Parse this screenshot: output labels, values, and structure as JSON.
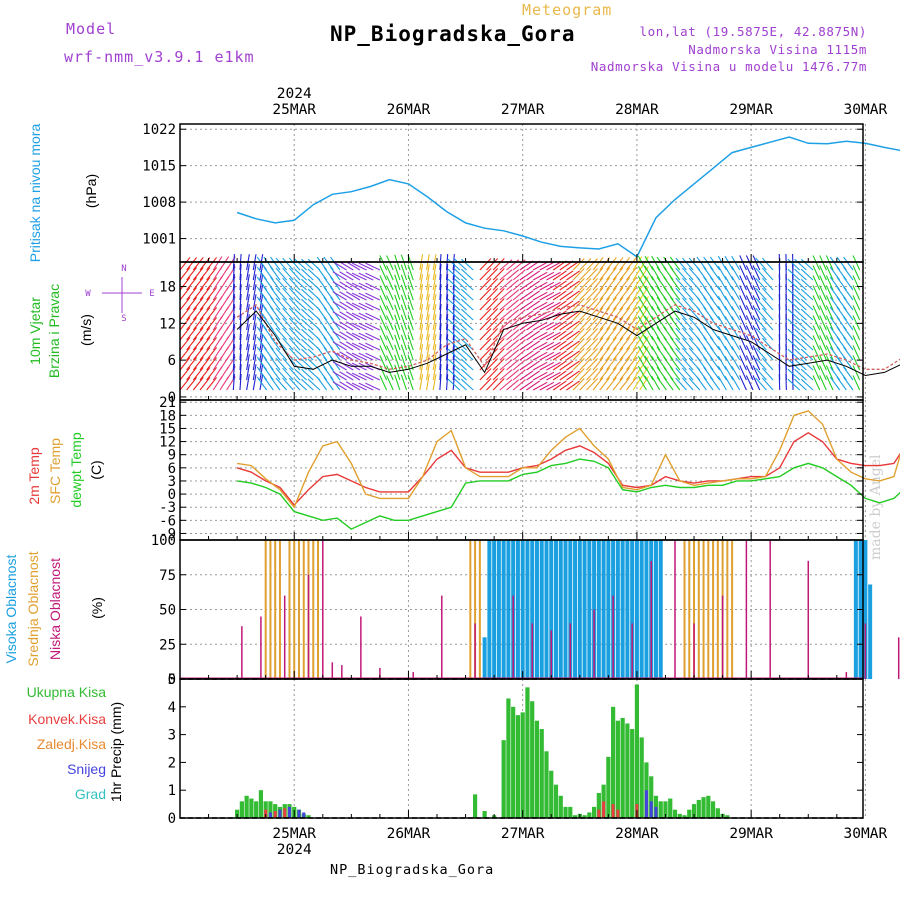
{
  "header": {
    "model_label": "Model",
    "model_name": "wrf-nmm_v3.9.1 e1km",
    "meteogram_label": "Meteogram",
    "station_title": "NP_Biogradska_Gora",
    "lonlat": "lon,lat (19.5875E, 42.8875N)",
    "altitude": "Nadmorska Visina 1115m",
    "model_altitude": "Nadmorska Visina u modelu 1476.77m",
    "made_by": "made by Angel",
    "footer_title": "NP_Biogradska_Gora"
  },
  "colors": {
    "pressure": "#1ea0e6",
    "wind_label": "#22bb22",
    "temp_2m": "#e83838",
    "temp_sfc": "#e0a030",
    "dewpoint": "#22cc22",
    "cloud_high": "#1aa0e0",
    "cloud_mid": "#e0a030",
    "cloud_low": "#c01878",
    "precip_total": "#33bb33",
    "precip_conv": "#e84040",
    "precip_frozen": "#e88a30",
    "snow": "#4444dd",
    "graupel": "#33c0c0",
    "wind_compass": "#a040d0"
  },
  "time_axis": {
    "top_year": "2024",
    "bottom_year": "2024",
    "days": [
      "25MAR",
      "26MAR",
      "27MAR",
      "28MAR",
      "29MAR",
      "30MAR"
    ]
  },
  "chart_data": [
    {
      "type": "line",
      "panel": "pressure",
      "title": "Pritisak na nivou mora",
      "ylabel": "(hPa)",
      "yticks": [
        1001,
        1008,
        1015,
        1022
      ],
      "ylim": [
        996.5,
        1023
      ],
      "x_hours": [
        0,
        4,
        8,
        12,
        16,
        20,
        24,
        28,
        32,
        36,
        40,
        44,
        48,
        52,
        56,
        60,
        64,
        68,
        72,
        76,
        80,
        84,
        88,
        92,
        96,
        100,
        104,
        108,
        112,
        116,
        120,
        124,
        128,
        132,
        136,
        140,
        144
      ],
      "series": [
        {
          "values": [
            1006,
            1004.8,
            1004,
            1004.5,
            1007.5,
            1009.5,
            1010,
            1011,
            1012.3,
            1011.5,
            1009,
            1006.2,
            1004,
            1003,
            1002.5,
            1001.5,
            1000.3,
            999.5,
            999.2,
            999,
            1000,
            997.5,
            1005,
            1008.5,
            1011.5,
            1014.5,
            1017.5,
            1018.5,
            1019.5,
            1020.5,
            1019.3,
            1019.2,
            1019.7,
            1019.3,
            1018.5,
            1017.8,
            1016.8
          ]
        }
      ]
    },
    {
      "type": "line",
      "panel": "wind",
      "title": "10m Vjetar Brzina i Pravac",
      "ylabel": "(m/s)",
      "compass": {
        "n": "N",
        "s": "S",
        "w": "W",
        "e": "E"
      },
      "yticks": [
        0,
        6,
        12,
        18
      ],
      "ylim": [
        -0.5,
        22
      ],
      "x_hours": [
        0,
        4,
        8,
        12,
        16,
        20,
        24,
        28,
        32,
        36,
        40,
        44,
        48,
        52,
        56,
        60,
        64,
        68,
        72,
        76,
        80,
        84,
        88,
        92,
        96,
        100,
        104,
        108,
        112,
        116,
        120,
        124,
        128,
        132,
        136,
        140,
        144
      ],
      "series": [
        {
          "values": [
            11,
            14,
            10,
            5,
            4.5,
            6,
            5,
            5,
            4,
            4.5,
            5.5,
            7,
            8.5,
            4,
            11,
            12,
            12.5,
            13.5,
            14,
            13,
            12,
            10,
            12,
            14,
            13,
            11,
            10,
            9,
            7,
            5,
            5.5,
            6,
            5,
            3.5,
            4,
            5.5,
            8
          ]
        },
        {
          "values": [
            13,
            15,
            9,
            6,
            6.5,
            7.5,
            6,
            5.5,
            4.5,
            5,
            6,
            8.5,
            9.5,
            5,
            12,
            13,
            13.5,
            14.5,
            15,
            14,
            13,
            11,
            13,
            15,
            14,
            12,
            11,
            10,
            8,
            6,
            6.5,
            7,
            6,
            4.5,
            4.5,
            6.5,
            9
          ]
        }
      ]
    },
    {
      "type": "line",
      "panel": "temperature",
      "title": "2m Temp / SFC Temp / dewpt Temp",
      "legend": [
        "2m Temp",
        "SFC Temp",
        "dewpt Temp"
      ],
      "ylabel": "(C)",
      "yticks": [
        -9,
        -6,
        -3,
        0,
        3,
        6,
        9,
        12,
        15,
        18,
        21
      ],
      "ylim": [
        -10.5,
        21.5
      ],
      "x_hours": [
        0,
        3,
        6,
        9,
        12,
        15,
        18,
        21,
        24,
        27,
        30,
        33,
        36,
        39,
        42,
        45,
        48,
        51,
        54,
        57,
        60,
        63,
        66,
        69,
        72,
        75,
        78,
        81,
        84,
        87,
        90,
        93,
        96,
        99,
        102,
        105,
        108,
        111,
        114,
        117,
        120,
        123,
        126,
        129,
        132,
        135,
        138,
        141,
        144
      ],
      "series": [
        {
          "name": "2m Temp",
          "values": [
            6,
            5,
            3,
            1.5,
            -2.5,
            1,
            4,
            4.5,
            3,
            1.5,
            0.5,
            0.5,
            0.5,
            4,
            8,
            10,
            6,
            5,
            5,
            5,
            6,
            6.5,
            8,
            10,
            11,
            9.5,
            7,
            2,
            1.5,
            2,
            4,
            3,
            2.5,
            3,
            3,
            3.5,
            4,
            4,
            6,
            12,
            14,
            12,
            8,
            7,
            6.5,
            6.5,
            7,
            12,
            13.5
          ]
        },
        {
          "name": "SFC Temp",
          "values": [
            7,
            6.5,
            3.5,
            1,
            -3,
            5,
            11,
            12,
            7,
            0,
            -1,
            -1,
            -1,
            4,
            12,
            14.5,
            6,
            4,
            4,
            4,
            6,
            6,
            10,
            13,
            15,
            11,
            8,
            1.5,
            1,
            2,
            9,
            3,
            2,
            2.5,
            3,
            3.5,
            3.5,
            4,
            10,
            18,
            19,
            16,
            8,
            5,
            3.5,
            3,
            4,
            15,
            20
          ]
        },
        {
          "name": "dewpt Temp",
          "values": [
            3,
            2.5,
            1.5,
            0,
            -4,
            -5,
            -6,
            -5.5,
            -8,
            -6.5,
            -5,
            -6,
            -6,
            -5,
            -4,
            -3,
            2.5,
            3,
            3,
            3,
            4.5,
            5,
            6.5,
            7,
            8,
            7.5,
            6,
            1,
            0.5,
            1.5,
            2,
            1.5,
            1.5,
            2,
            2,
            3,
            3,
            3.5,
            4,
            6,
            7,
            6,
            4,
            2,
            -1,
            -2,
            -1,
            2,
            1.5
          ]
        }
      ]
    },
    {
      "type": "bar",
      "panel": "clouds",
      "title": "Visoka Oblacnost / Srednja Oblacnost / Niska Oblacnost",
      "legend": [
        "Visoka Oblacnost",
        "Srednja Oblacnost",
        "Niska Oblacnost"
      ],
      "ylabel": "(%)",
      "yticks": [
        0,
        25,
        50,
        75,
        100
      ],
      "ylim": [
        0,
        100
      ],
      "series": [
        {
          "name": "Srednja Oblacnost",
          "x_hours": [
            6,
            7,
            8,
            9,
            11,
            12,
            13,
            14,
            15,
            16,
            17,
            49,
            50,
            51,
            56,
            57,
            58,
            59,
            84,
            88,
            94,
            95,
            96,
            97,
            98,
            99,
            100,
            101,
            102,
            103,
            104
          ],
          "values": [
            100,
            100,
            100,
            100,
            100,
            100,
            100,
            100,
            100,
            100,
            100,
            100,
            100,
            100,
            100,
            100,
            100,
            100,
            100,
            100,
            100,
            100,
            100,
            100,
            100,
            100,
            100,
            100,
            100,
            100,
            100
          ]
        },
        {
          "name": "Visoka Oblacnost",
          "x_hours": [
            52,
            53,
            54,
            55,
            56,
            57,
            58,
            59,
            60,
            61,
            62,
            63,
            64,
            65,
            66,
            67,
            68,
            69,
            70,
            71,
            72,
            73,
            74,
            75,
            76,
            77,
            78,
            79,
            80,
            81,
            82,
            83,
            84,
            85,
            86,
            87,
            88,
            89,
            130,
            131,
            132,
            133
          ],
          "values": [
            30,
            100,
            100,
            100,
            100,
            100,
            100,
            100,
            100,
            100,
            100,
            100,
            100,
            100,
            100,
            100,
            100,
            100,
            100,
            100,
            100,
            100,
            100,
            100,
            100,
            100,
            100,
            100,
            100,
            100,
            100,
            100,
            100,
            100,
            100,
            100,
            100,
            100,
            100,
            100,
            100,
            68
          ]
        },
        {
          "name": "Niska Oblacnost",
          "x_hours": [
            1,
            5,
            10,
            15,
            18,
            20,
            22,
            26,
            30,
            37,
            43,
            50,
            58,
            62,
            66,
            70,
            75,
            79,
            83,
            87,
            92,
            96,
            102,
            107,
            112,
            120,
            128,
            132,
            139
          ],
          "values": [
            38,
            45,
            60,
            75,
            100,
            12,
            10,
            45,
            8,
            5,
            60,
            40,
            60,
            40,
            35,
            40,
            50,
            60,
            40,
            85,
            100,
            40,
            60,
            100,
            100,
            85,
            5,
            40,
            30
          ]
        }
      ]
    },
    {
      "type": "bar",
      "panel": "precipitation",
      "title": "Ukupna Kisa / Konvek.Kisa / Zaledj.Kisa / Snijeg / Grad",
      "legend": [
        "Ukupna Kisa",
        "Konvek.Kisa",
        "Zaledj.Kisa",
        "Snijeg",
        "Grad"
      ],
      "ylabel": "1hr Precip (mm)",
      "yticks": [
        0,
        1,
        2,
        3,
        4,
        5
      ],
      "ylim": [
        0,
        5
      ],
      "series": [
        {
          "name": "Ukupna Kisa",
          "x_hours": [
            0,
            1,
            2,
            3,
            4,
            5,
            6,
            7,
            8,
            9,
            10,
            11,
            12,
            13,
            14,
            15,
            50,
            52,
            54,
            56,
            57,
            58,
            59,
            60,
            61,
            62,
            63,
            64,
            65,
            66,
            67,
            68,
            69,
            70,
            71,
            72,
            73,
            74,
            75,
            76,
            77,
            78,
            79,
            80,
            81,
            82,
            83,
            84,
            85,
            86,
            87,
            88,
            89,
            90,
            91,
            92,
            93,
            94,
            95,
            96,
            97,
            98,
            99,
            100,
            101,
            102,
            103
          ],
          "values": [
            0.3,
            0.6,
            0.8,
            0.7,
            0.6,
            1.0,
            0.6,
            0.6,
            0.5,
            0.4,
            0.5,
            0.5,
            0.4,
            0.3,
            0.15,
            0.1,
            0.85,
            0.25,
            0.1,
            2.8,
            4.3,
            4.0,
            3.7,
            3.8,
            4.7,
            4.2,
            3.5,
            3.2,
            2.4,
            1.7,
            1.2,
            0.8,
            0.4,
            0.4,
            0.1,
            0.15,
            0.1,
            0.2,
            0.4,
            0.9,
            1.2,
            2.2,
            4.0,
            3.5,
            3.6,
            3.4,
            3.2,
            4.8,
            2.9,
            2.0,
            1.5,
            0.8,
            0.6,
            0.6,
            0.7,
            0.3,
            0.15,
            0.1,
            0.3,
            0.5,
            0.65,
            0.75,
            0.8,
            0.6,
            0.35,
            0.15,
            0.1
          ]
        },
        {
          "name": "Konvek.Kisa",
          "x_hours": [
            6,
            8,
            10,
            76,
            77,
            79,
            80,
            84,
            86
          ],
          "values": [
            0.3,
            0.25,
            0.35,
            0.3,
            0.6,
            0.5,
            0.3,
            0.5,
            0.3
          ]
        },
        {
          "name": "Snijeg",
          "x_hours": [
            7,
            9,
            11,
            13,
            14,
            86,
            87,
            88
          ],
          "values": [
            0.2,
            0.3,
            0.4,
            0.3,
            0.2,
            1.0,
            0.6,
            0.4
          ]
        }
      ]
    }
  ]
}
